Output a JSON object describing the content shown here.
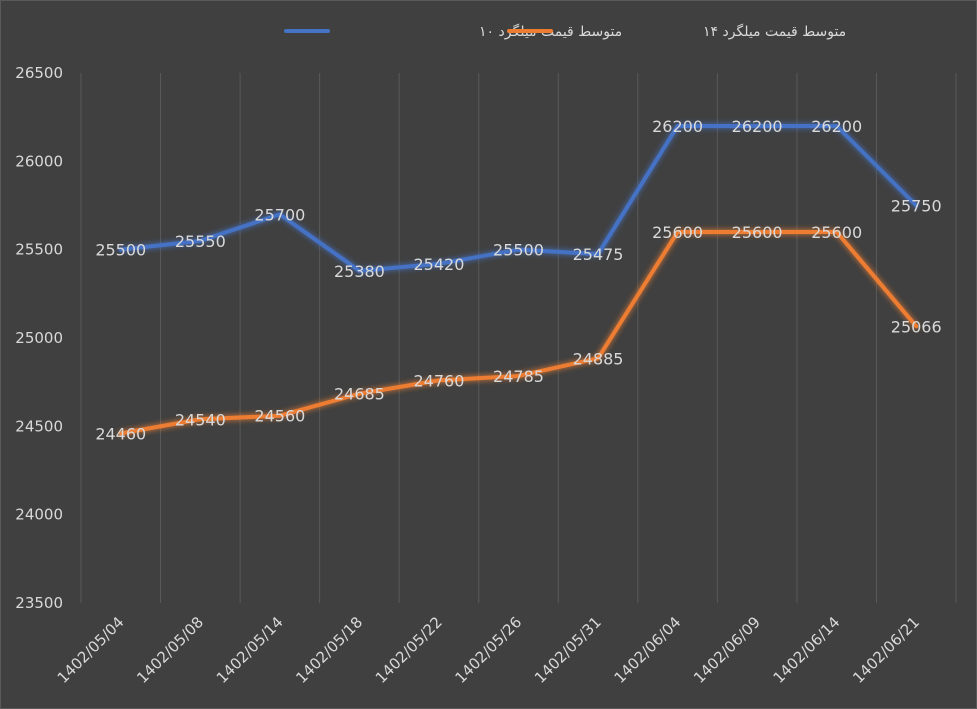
{
  "chart_data": {
    "type": "line",
    "title": "",
    "xlabel": "",
    "ylabel": "",
    "categories": [
      "1402/05/04",
      "1402/05/08",
      "1402/05/14",
      "1402/05/18",
      "1402/05/22",
      "1402/05/26",
      "1402/05/31",
      "1402/06/04",
      "1402/06/09",
      "1402/06/14",
      "1402/06/21"
    ],
    "ylim": [
      23500,
      26500
    ],
    "yticks": [
      23500,
      24000,
      24500,
      25000,
      25500,
      26000,
      26500
    ],
    "grid": "vertical",
    "legend_position": "top",
    "series": [
      {
        "name": "متوسط قیمت میلگرد ۱۰",
        "color": "#4472c4",
        "values": [
          25500,
          25550,
          25700,
          25380,
          25420,
          25500,
          25475,
          26200,
          26200,
          26200,
          25750
        ]
      },
      {
        "name": "متوسط قیمت میلگرد ۱۴",
        "color": "#ed7d31",
        "values": [
          24460,
          24540,
          24560,
          24685,
          24760,
          24785,
          24885,
          25600,
          25600,
          25600,
          25066
        ]
      }
    ]
  }
}
